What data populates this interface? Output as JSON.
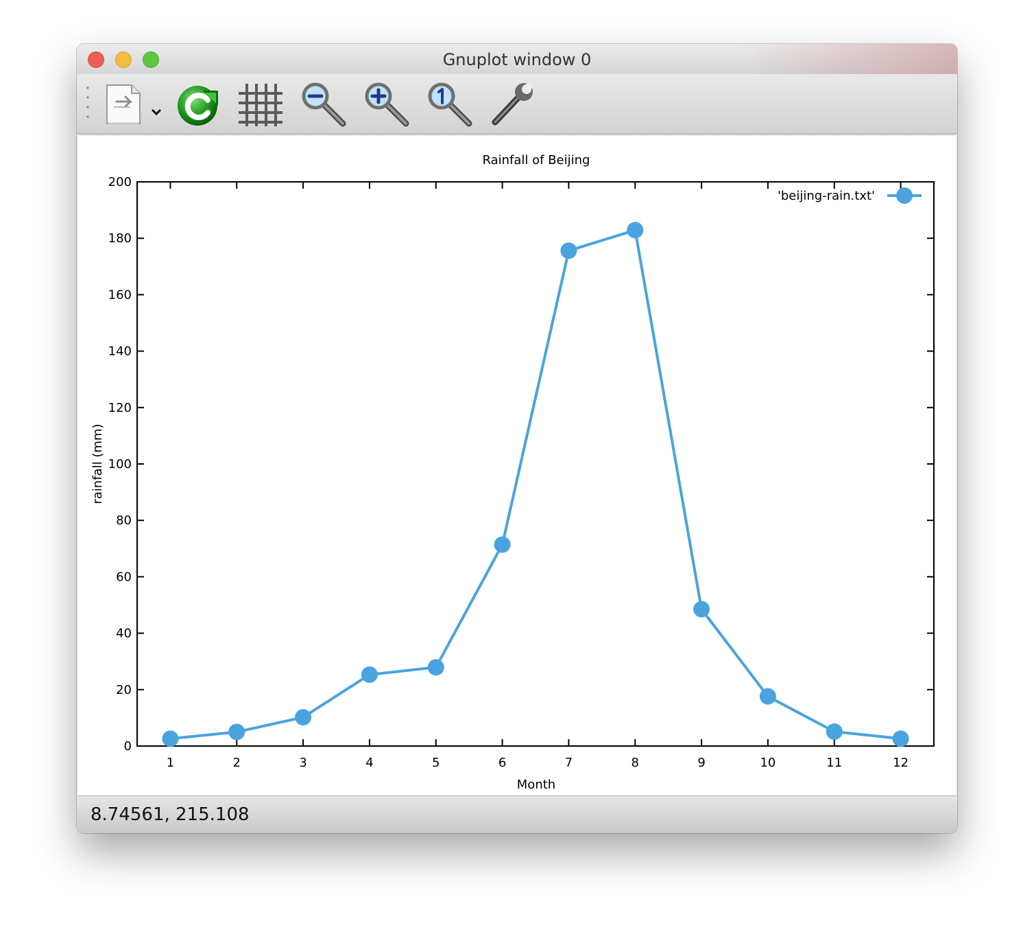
{
  "window": {
    "title": "Gnuplot window 0"
  },
  "toolbar": {
    "items": [
      {
        "name": "export",
        "icon": "export-document-icon"
      },
      {
        "name": "replot",
        "icon": "refresh-icon"
      },
      {
        "name": "grid",
        "icon": "grid-icon"
      },
      {
        "name": "zoom-out",
        "icon": "zoom-out-icon"
      },
      {
        "name": "zoom-in",
        "icon": "zoom-in-icon"
      },
      {
        "name": "zoom-reset",
        "icon": "zoom-reset-icon"
      },
      {
        "name": "settings",
        "icon": "wrench-icon"
      }
    ]
  },
  "status": {
    "coords": "8.74561,  215.108"
  },
  "colors": {
    "series": "#4aa3df"
  },
  "chart_data": {
    "type": "line",
    "title": "Rainfall of Beijing",
    "xlabel": "Month",
    "ylabel": "rainfall (mm)",
    "xlim": [
      0.5,
      12.5
    ],
    "ylim": [
      0,
      200
    ],
    "xticks": [
      1,
      2,
      3,
      4,
      5,
      6,
      7,
      8,
      9,
      10,
      11,
      12
    ],
    "yticks": [
      0,
      20,
      40,
      60,
      80,
      100,
      120,
      140,
      160,
      180,
      200
    ],
    "grid": false,
    "legend": "top-right",
    "series": [
      {
        "name": "'beijing-rain.txt'",
        "x": [
          1,
          2,
          3,
          4,
          5,
          6,
          7,
          8,
          9,
          10,
          11,
          12
        ],
        "y": [
          2.6,
          5.0,
          10.2,
          25.3,
          27.9,
          71.4,
          175.6,
          182.9,
          48.5,
          17.6,
          5.1,
          2.6
        ]
      }
    ]
  }
}
